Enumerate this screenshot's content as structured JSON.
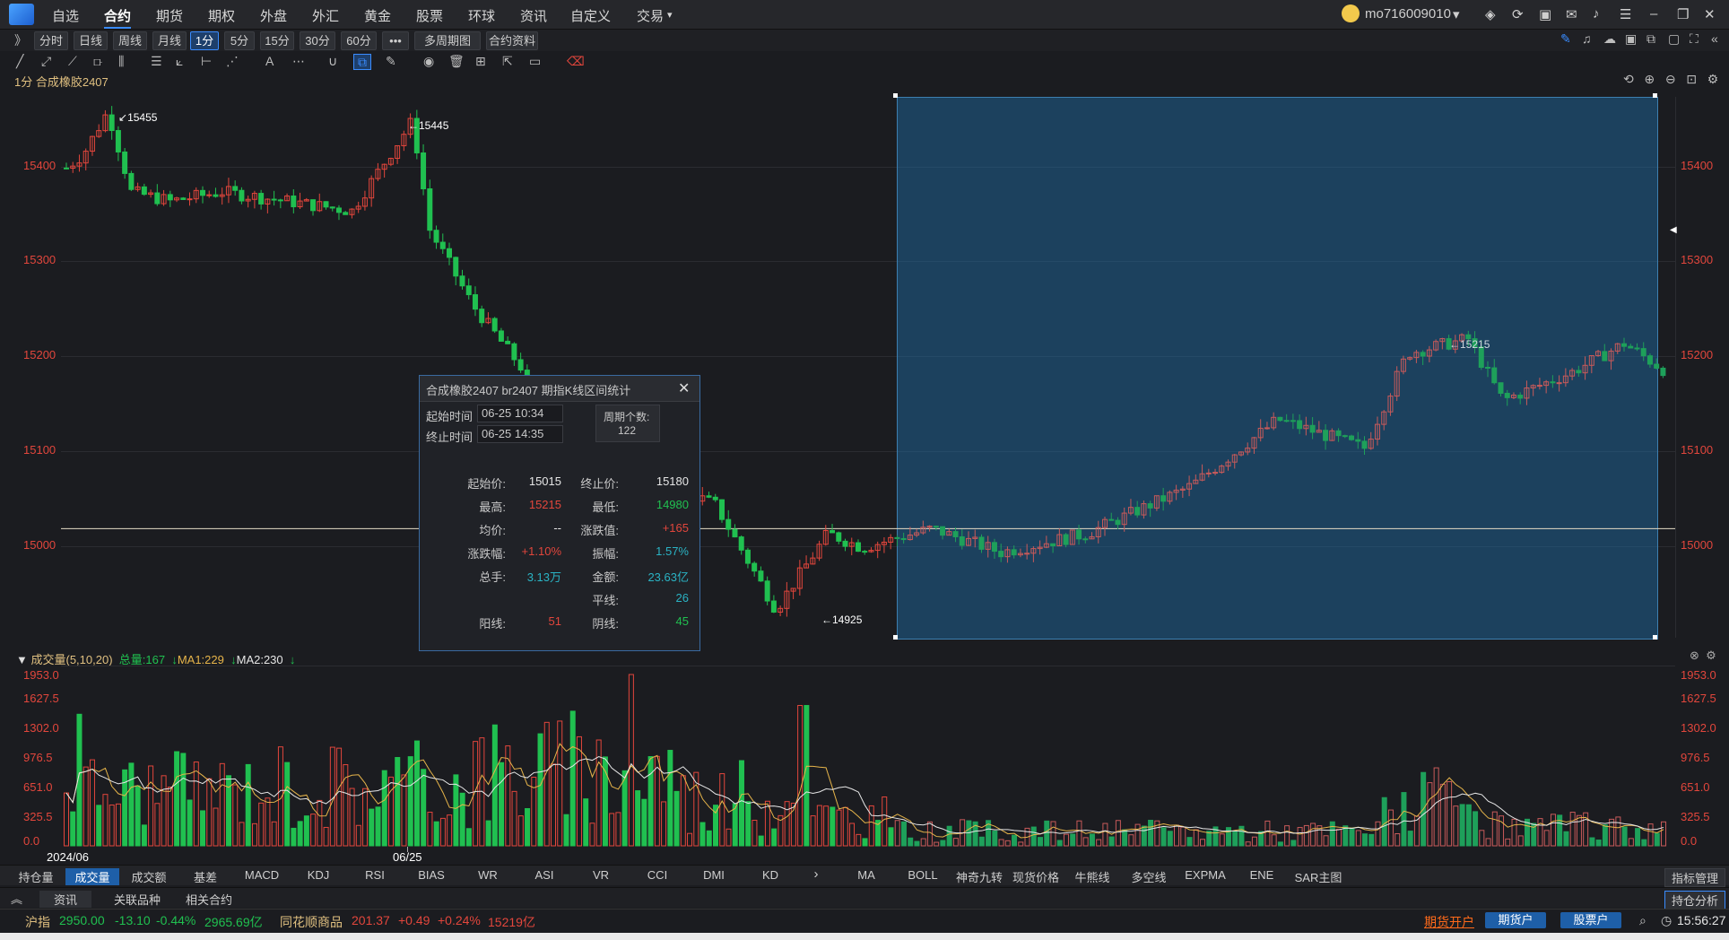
{
  "menu": [
    "自选",
    "合约",
    "期货",
    "期权",
    "外盘",
    "外汇",
    "黄金",
    "股票",
    "环球",
    "资讯",
    "自定义",
    "交易"
  ],
  "menu_active": 1,
  "user": {
    "name": "mo716009010"
  },
  "periods": [
    "分时",
    "日线",
    "周线",
    "月线",
    "1分",
    "5分",
    "15分",
    "30分",
    "60分",
    "•••",
    "多周期图",
    "合约资料"
  ],
  "period_selected": 4,
  "chart_title": "1分 合成橡胶2407",
  "price_axis": [
    "15400",
    "15300",
    "15200",
    "15100",
    "15000"
  ],
  "annotations": {
    "high1": "15455",
    "high2": "15445",
    "low": "14925",
    "sel_high": "15215"
  },
  "popup": {
    "title": "合成橡胶2407  br2407  期指K线区间统计",
    "start_label": "起始时间",
    "start_time": "06-25 10:34",
    "end_label": "终止时间",
    "end_time": "06-25 14:35",
    "count_label": "周期个数:",
    "count": "122",
    "rows": [
      {
        "l1": "起始价:",
        "v1": "15015",
        "c1": "white",
        "l2": "终止价:",
        "v2": "15180",
        "c2": "white"
      },
      {
        "l1": "最高:",
        "v1": "15215",
        "c1": "red",
        "l2": "最低:",
        "v2": "14980",
        "c2": "green"
      },
      {
        "l1": "均价:",
        "v1": "--",
        "c1": "white",
        "l2": "涨跌值:",
        "v2": "+165",
        "c2": "red"
      },
      {
        "l1": "涨跌幅:",
        "v1": "+1.10%",
        "c1": "red",
        "l2": "振幅:",
        "v2": "1.57%",
        "c2": "cyan"
      },
      {
        "l1": "总手:",
        "v1": "3.13万",
        "c1": "cyan",
        "l2": "金额:",
        "v2": "23.63亿",
        "c2": "cyan"
      },
      {
        "l1": "",
        "v1": "",
        "c1": "white",
        "l2": "平线:",
        "v2": "26",
        "c2": "cyan"
      },
      {
        "l1": "阳线:",
        "v1": "51",
        "c1": "red",
        "l2": "阴线:",
        "v2": "45",
        "c2": "green"
      }
    ]
  },
  "volume": {
    "title": "成交量(5,10,20)",
    "total": "总量:167",
    "ma1": "MA1:229",
    "ma2": "MA2:230",
    "axis": [
      "1953.0",
      "1627.5",
      "1302.0",
      "976.5",
      "651.0",
      "325.5",
      "0.0"
    ]
  },
  "dates": [
    "2024/06",
    "06/25"
  ],
  "indicator_tabs": [
    "持仓量",
    "成交量",
    "成交额",
    "基差",
    "MACD",
    "KDJ",
    "RSI",
    "BIAS",
    "WR",
    "ASI",
    "VR",
    "CCI",
    "DMI",
    "KD"
  ],
  "indicator_selected": 1,
  "overlay_tabs": [
    "MA",
    "BOLL",
    "神奇九转",
    "现货价格",
    "牛熊线",
    "多空线",
    "EXPMA",
    "ENE",
    "SAR主图"
  ],
  "indicator_manage": "指标管理",
  "sub_tabs": [
    "资讯",
    "关联品种",
    "相关合约"
  ],
  "hold_analysis": "持仓分析",
  "ticker": {
    "index_name": "沪指",
    "index_price": "2950.00",
    "index_change": "-13.10",
    "index_pct": "-0.44%",
    "index_amount": "2965.69亿",
    "comm_name": "同花顺商品",
    "comm_price": "201.37",
    "comm_change": "+0.49",
    "comm_pct": "+0.24%",
    "comm_amount": "15219亿"
  },
  "bottom_buttons": [
    "期货开户",
    "期货户",
    "股票户"
  ],
  "clock": "15:56:27",
  "chart_data": {
    "type": "candlestick",
    "symbol": "合成橡胶2407",
    "interval": "1分",
    "price_range": [
      14900,
      15470
    ],
    "key_points": [
      {
        "label": "high",
        "value": 15455
      },
      {
        "label": "high",
        "value": 15445
      },
      {
        "label": "low",
        "value": 14925
      },
      {
        "label": "selection_high",
        "value": 15215
      }
    ],
    "reference_line": 15015,
    "volume_range": [
      0,
      1953
    ],
    "selection": {
      "start": "06-25 10:34",
      "end": "06-25 14:35",
      "bars": 122
    }
  }
}
